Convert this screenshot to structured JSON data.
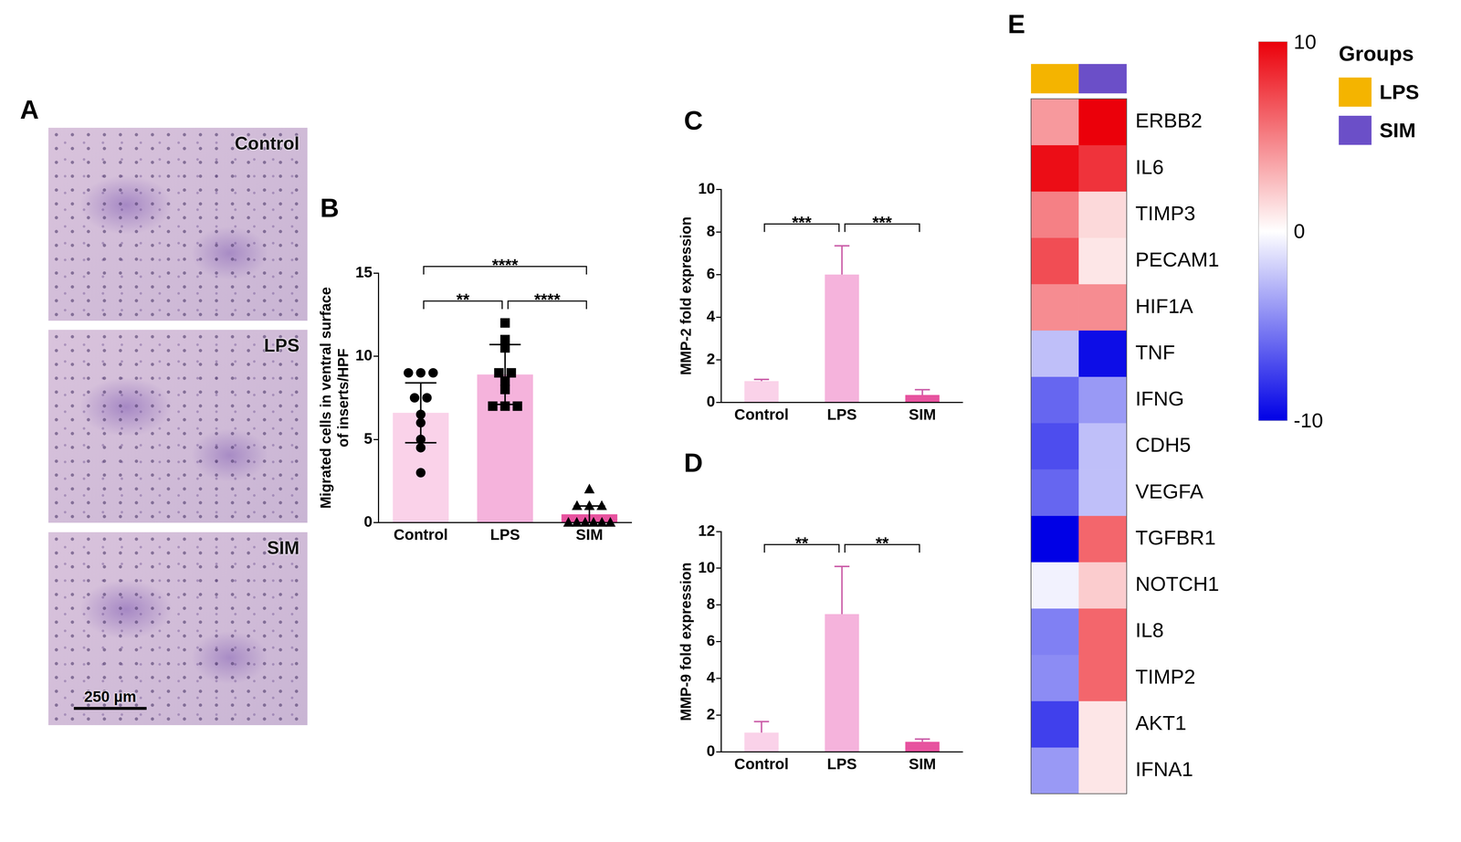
{
  "chart_data": [
    {
      "panel": "B",
      "type": "bar",
      "categories": [
        "Control",
        "LPS",
        "SIM"
      ],
      "values": [
        6.6,
        8.9,
        0.5
      ],
      "errors": [
        1.8,
        1.8,
        0.5
      ],
      "points": [
        {
          "category": "Control",
          "marker": "circle",
          "values": [
            9,
            9,
            9,
            7.5,
            7.5,
            6.5,
            6,
            5,
            4.5,
            3
          ]
        },
        {
          "category": "LPS",
          "marker": "square",
          "values": [
            12,
            11,
            10.5,
            9,
            9,
            8.5,
            8,
            7,
            7,
            7
          ]
        },
        {
          "category": "SIM",
          "marker": "triangle",
          "values": [
            2,
            1,
            1,
            1,
            0,
            0,
            0,
            0,
            0,
            0
          ]
        }
      ],
      "colors": [
        "#fad2e9",
        "#f5b3dc",
        "#e7539f"
      ],
      "y_label": [
        "Migrated cells in ventral surface",
        "of inserts/HPF"
      ],
      "ylim": [
        0,
        15
      ],
      "yticks": [
        0,
        5,
        10,
        15
      ],
      "grid": false,
      "significance": [
        {
          "from": "Control",
          "to": "LPS",
          "label": "**"
        },
        {
          "from": "LPS",
          "to": "SIM",
          "label": "****"
        },
        {
          "from": "Control",
          "to": "SIM",
          "label": "****"
        }
      ]
    },
    {
      "panel": "C",
      "type": "bar",
      "categories": [
        "Control",
        "LPS",
        "SIM"
      ],
      "values": [
        1.0,
        6.0,
        0.35
      ],
      "errors_above": [
        0.08,
        1.35,
        0.25
      ],
      "colors": [
        "#fad2e9",
        "#f5b3dc",
        "#e7539f"
      ],
      "y_label": "MMP-2 fold expression",
      "ylim": [
        0,
        10
      ],
      "yticks": [
        0,
        2,
        4,
        6,
        8,
        10
      ],
      "grid": false,
      "significance": [
        {
          "from": "Control",
          "to": "LPS",
          "label": "***"
        },
        {
          "from": "LPS",
          "to": "SIM",
          "label": "***"
        }
      ]
    },
    {
      "panel": "D",
      "type": "bar",
      "categories": [
        "Control",
        "LPS",
        "SIM"
      ],
      "values": [
        1.05,
        7.5,
        0.55
      ],
      "errors_above": [
        0.6,
        2.6,
        0.15
      ],
      "colors": [
        "#fad2e9",
        "#f5b3dc",
        "#e7539f"
      ],
      "y_label": "MMP-9 fold expression",
      "ylim": [
        0,
        12
      ],
      "yticks": [
        0,
        2,
        4,
        6,
        8,
        10,
        12
      ],
      "grid": false,
      "significance": [
        {
          "from": "Control",
          "to": "LPS",
          "label": "**"
        },
        {
          "from": "LPS",
          "to": "SIM",
          "label": "**"
        }
      ]
    },
    {
      "panel": "E",
      "type": "heatmap",
      "columns": [
        "LPS",
        "SIM"
      ],
      "colors": [
        "#f4b400",
        "#6b4fc8"
      ],
      "legend_title": "Groups",
      "rows": [
        "ERBB2",
        "IL6",
        "TIMP3",
        "PECAM1",
        "HIF1A",
        "TNF",
        "IFNG",
        "CDH5",
        "VEGFA",
        "TGFBR1",
        "NOTCH1",
        "IL8",
        "TIMP2",
        "AKT1",
        "IFNA1"
      ],
      "cells": [
        [
          4,
          10
        ],
        [
          9.5,
          8
        ],
        [
          5,
          1.5
        ],
        [
          7,
          1
        ],
        [
          4.5,
          4.5
        ],
        [
          -2.5,
          -9.5
        ],
        [
          -6,
          -4
        ],
        [
          -7,
          -2.5
        ],
        [
          -6,
          -2.5
        ],
        [
          -10,
          6
        ],
        [
          -0.5,
          2
        ],
        [
          -5,
          6
        ],
        [
          -4.5,
          6
        ],
        [
          -7.5,
          1
        ],
        [
          -4,
          1
        ]
      ],
      "colorbar": {
        "range": [
          -10,
          10
        ],
        "ticks": [
          10,
          0,
          -10
        ]
      }
    }
  ],
  "images": {
    "panel": "A",
    "labels": [
      "Control",
      "LPS",
      "SIM"
    ],
    "scale_bar": "250 µm"
  }
}
